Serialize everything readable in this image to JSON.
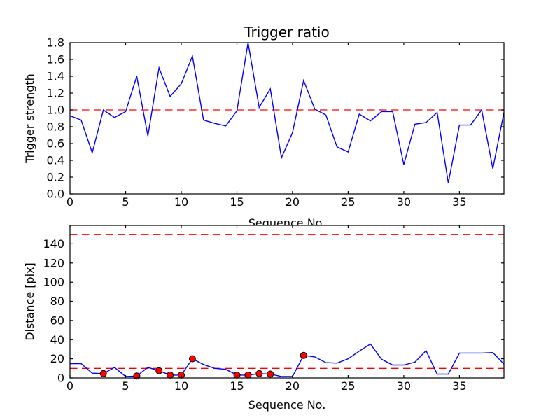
{
  "figure": {
    "background": "#ffffff",
    "frame_color": "#000000"
  },
  "chart_data": [
    {
      "type": "line",
      "title": "Trigger ratio",
      "xlabel": "Sequence No.",
      "ylabel": "Trigger strength",
      "xlim": [
        0,
        39
      ],
      "ylim": [
        0,
        1.8
      ],
      "xticks": [
        0,
        5,
        10,
        15,
        20,
        25,
        30,
        35
      ],
      "xtick_labels": [
        "0",
        "5",
        "10",
        "15",
        "20",
        "25",
        "30",
        "35"
      ],
      "yticks": [
        0,
        0.2,
        0.4,
        0.6,
        0.8,
        1.0,
        1.2,
        1.4,
        1.6,
        1.8
      ],
      "ytick_labels": [
        "0.0",
        "0.2",
        "0.4",
        "0.6",
        "0.8",
        "1.0",
        "1.2",
        "1.4",
        "1.6",
        "1.8"
      ],
      "grid": false,
      "legend": null,
      "line_color": "#0000ff",
      "threshold_lines": [
        {
          "y": 1.0,
          "color": "#ff0000",
          "style": "dashed"
        }
      ],
      "x": [
        0,
        1,
        2,
        3,
        4,
        5,
        6,
        7,
        8,
        9,
        10,
        11,
        12,
        13,
        14,
        15,
        16,
        17,
        18,
        19,
        20,
        21,
        22,
        23,
        24,
        25,
        26,
        27,
        28,
        29,
        30,
        31,
        32,
        33,
        34,
        35,
        36,
        37,
        38,
        39
      ],
      "values": [
        0.93,
        0.88,
        0.49,
        1.0,
        0.91,
        0.98,
        1.4,
        0.69,
        1.5,
        1.16,
        1.31,
        1.64,
        0.88,
        0.84,
        0.81,
        0.99,
        1.8,
        1.03,
        1.25,
        0.43,
        0.73,
        1.35,
        1.01,
        0.94,
        0.56,
        0.5,
        0.95,
        0.87,
        0.98,
        0.98,
        0.35,
        0.83,
        0.85,
        0.97,
        0.13,
        0.82,
        0.82,
        1.0,
        0.3,
        0.97
      ]
    },
    {
      "type": "line",
      "title": "",
      "xlabel": "Sequence No.",
      "ylabel": "Distance [pix]",
      "xlim": [
        0,
        39
      ],
      "ylim": [
        0,
        159.3
      ],
      "xticks": [
        0,
        5,
        10,
        15,
        20,
        25,
        30,
        35
      ],
      "xtick_labels": [
        "0",
        "5",
        "10",
        "15",
        "20",
        "25",
        "30",
        "35"
      ],
      "yticks": [
        0,
        20,
        40,
        60,
        80,
        100,
        120,
        140
      ],
      "ytick_labels": [
        "0",
        "20",
        "40",
        "60",
        "80",
        "100",
        "120",
        "140"
      ],
      "grid": false,
      "legend": null,
      "line_color": "#0000ff",
      "threshold_lines": [
        {
          "y": 150,
          "color": "#ff0000",
          "style": "dashed"
        },
        {
          "y": 10,
          "color": "#ff0000",
          "style": "dashed"
        }
      ],
      "x": [
        0,
        1,
        2,
        3,
        4,
        5,
        6,
        7,
        8,
        9,
        10,
        11,
        12,
        13,
        14,
        15,
        16,
        17,
        18,
        19,
        20,
        21,
        22,
        23,
        24,
        25,
        26,
        27,
        28,
        29,
        30,
        31,
        32,
        33,
        34,
        35,
        36,
        37,
        38,
        39
      ],
      "values": [
        15,
        15,
        5,
        4.5,
        11,
        1.5,
        2,
        11,
        7.5,
        3,
        3,
        20,
        14,
        10,
        9,
        3,
        3,
        4.5,
        4,
        1.5,
        1.5,
        23.5,
        22,
        16,
        15.5,
        20,
        28,
        35.5,
        19.5,
        13.5,
        13.5,
        16.5,
        28.5,
        4,
        4,
        26,
        26,
        26,
        26.5,
        14.5
      ],
      "markers": {
        "indices": [
          3,
          6,
          8,
          9,
          10,
          11,
          15,
          16,
          17,
          18,
          21
        ],
        "shape": "circle",
        "color": "#ff0000",
        "edge_color": "#000000"
      }
    }
  ]
}
